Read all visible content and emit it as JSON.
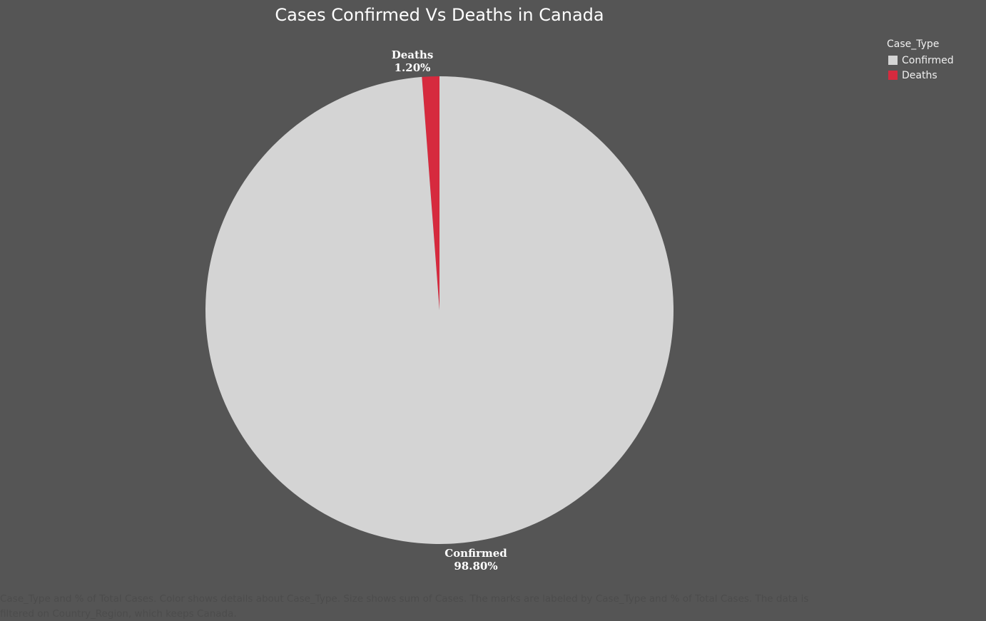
{
  "chart_data": {
    "type": "pie",
    "title": "Cases Confirmed Vs Deaths in Canada",
    "slices": [
      {
        "label": "Confirmed",
        "percent": 98.8,
        "percent_label": "98.80%",
        "color": "#d4d4d4"
      },
      {
        "label": "Deaths",
        "percent": 1.2,
        "percent_label": "1.20%",
        "color": "#d62a3e"
      }
    ],
    "legend": {
      "title": "Case_Type",
      "position": "top-right",
      "items": [
        {
          "label": "Confirmed",
          "color": "#d4d4d4"
        },
        {
          "label": "Deaths",
          "color": "#d62a3e"
        }
      ]
    },
    "caption": [
      "Case_Type and % of Total Cases.  Color shows details about Case_Type.  Size shows sum of Cases.  The marks are labeled by Case_Type and % of Total Cases. The data is",
      "filtered on Country_Region, which keeps Canada."
    ]
  },
  "colors": {
    "background": "#555555",
    "title": "#ffffff",
    "caption": "#4c4c4c"
  }
}
